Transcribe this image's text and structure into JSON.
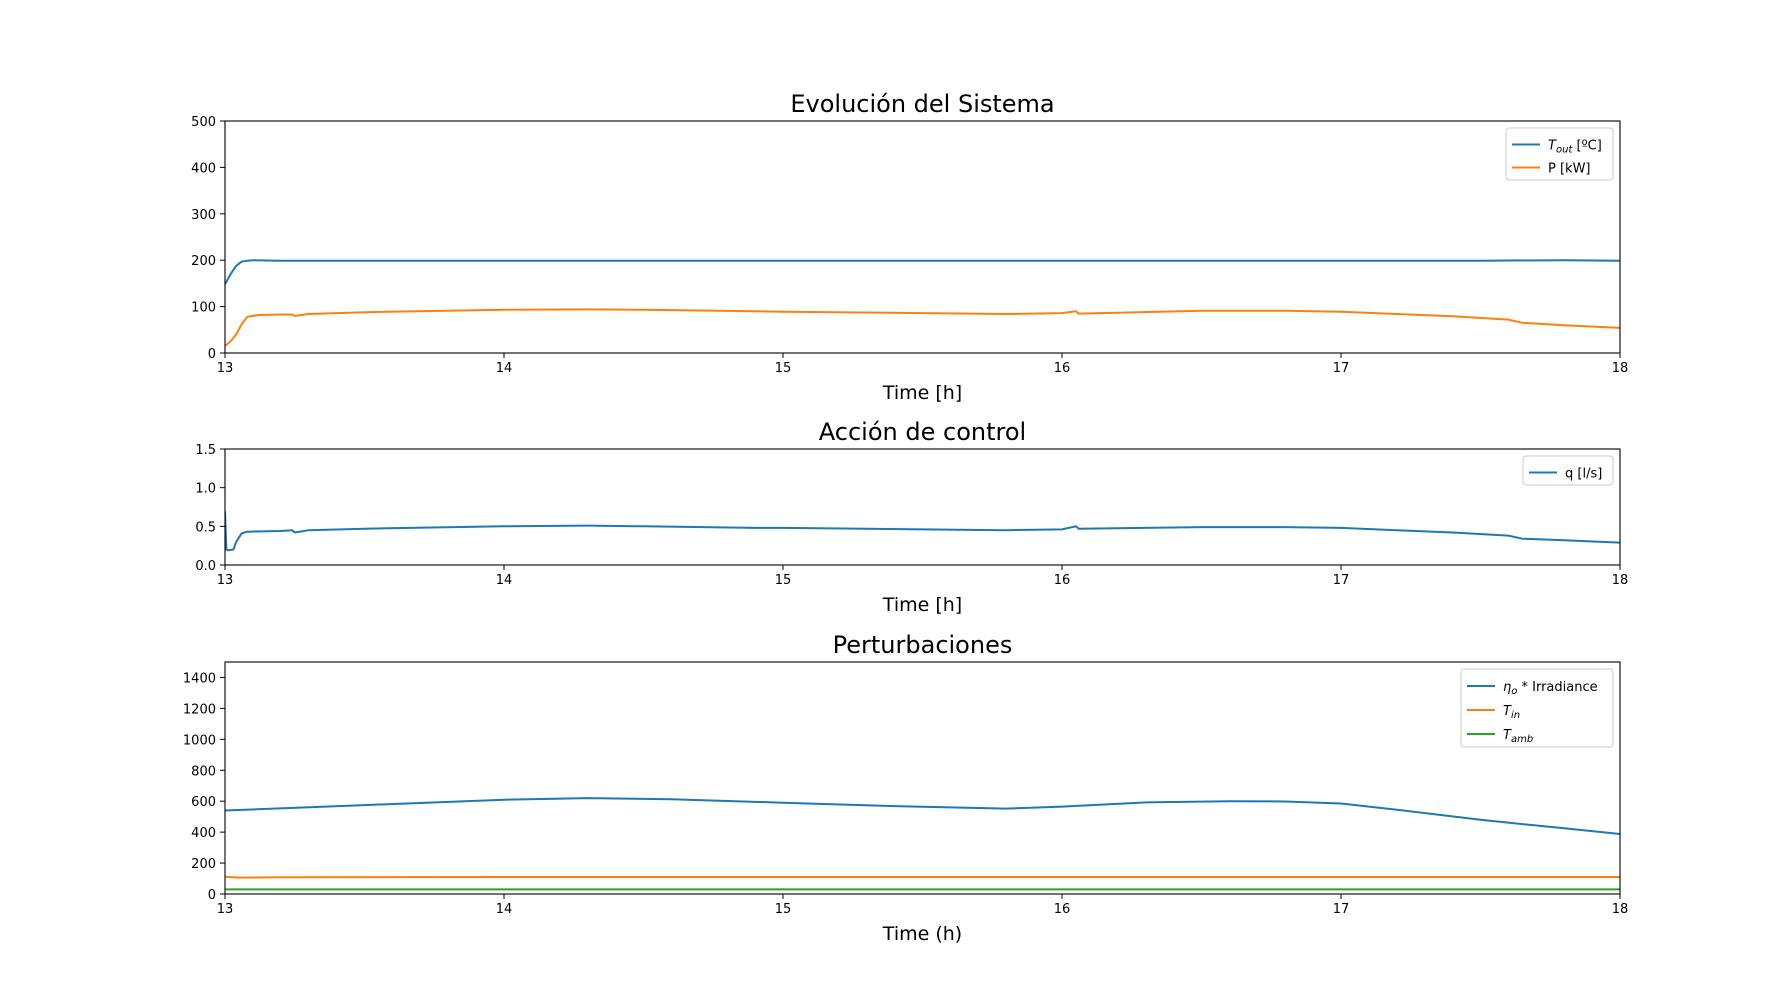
{
  "chart_data": [
    {
      "type": "line",
      "title": "Evolución del Sistema",
      "xlabel": "Time [h]",
      "ylabel": "",
      "xlim": [
        13,
        18
      ],
      "ylim": [
        0,
        500
      ],
      "xticks": [
        "13",
        "14",
        "15",
        "16",
        "17",
        "18"
      ],
      "yticks": [
        "0",
        "100",
        "200",
        "300",
        "400",
        "500"
      ],
      "legend": "top-right",
      "grid": false,
      "series": [
        {
          "name": "T_out [ºC]",
          "label_main": "T",
          "label_sub": "out",
          "label_suffix": " [ºC]",
          "color": "#1f77b4",
          "x": [
            13.0,
            13.02,
            13.04,
            13.06,
            13.08,
            13.1,
            13.2,
            13.5,
            14.0,
            14.5,
            15.0,
            15.5,
            16.0,
            16.5,
            17.0,
            17.5,
            17.8,
            18.0
          ],
          "y": [
            148,
            170,
            188,
            197,
            199,
            200,
            199,
            199,
            199,
            199,
            199,
            199,
            199,
            199,
            199,
            199,
            200,
            199
          ]
        },
        {
          "name": "P [kW]",
          "color": "#ff7f0e",
          "x": [
            13.0,
            13.02,
            13.04,
            13.06,
            13.08,
            13.12,
            13.2,
            13.24,
            13.25,
            13.3,
            13.5,
            14.0,
            14.3,
            14.5,
            14.9,
            15.0,
            15.5,
            15.8,
            16.0,
            16.05,
            16.06,
            16.5,
            16.8,
            17.0,
            17.2,
            17.4,
            17.6,
            17.65,
            17.8,
            18.0
          ],
          "y": [
            15,
            25,
            40,
            62,
            78,
            82,
            83,
            83,
            80,
            84,
            88,
            93,
            94,
            93,
            90,
            89,
            86,
            84,
            86,
            90,
            85,
            91,
            91,
            89,
            84,
            79,
            72,
            65,
            60,
            54
          ]
        }
      ]
    },
    {
      "type": "line",
      "title": "Acción de control",
      "xlabel": "Time [h]",
      "ylabel": "",
      "xlim": [
        13,
        18
      ],
      "ylim": [
        0,
        1.5
      ],
      "xticks": [
        "13",
        "14",
        "15",
        "16",
        "17",
        "18"
      ],
      "yticks": [
        "0.0",
        "0.5",
        "1.0",
        "1.5"
      ],
      "legend": "top-right",
      "grid": false,
      "series": [
        {
          "name": "q [l/s]",
          "color": "#1f77b4",
          "x": [
            13.0,
            13.005,
            13.01,
            13.03,
            13.04,
            13.06,
            13.08,
            13.2,
            13.24,
            13.25,
            13.3,
            13.5,
            14.0,
            14.3,
            14.5,
            14.9,
            15.0,
            15.5,
            15.8,
            16.0,
            16.05,
            16.06,
            16.5,
            16.8,
            17.0,
            17.2,
            17.4,
            17.6,
            17.65,
            17.8,
            18.0
          ],
          "y": [
            0.7,
            0.2,
            0.19,
            0.2,
            0.3,
            0.41,
            0.43,
            0.44,
            0.45,
            0.42,
            0.45,
            0.47,
            0.5,
            0.51,
            0.5,
            0.48,
            0.48,
            0.46,
            0.45,
            0.46,
            0.5,
            0.47,
            0.49,
            0.49,
            0.48,
            0.45,
            0.42,
            0.38,
            0.34,
            0.32,
            0.29
          ]
        }
      ]
    },
    {
      "type": "line",
      "title": "Perturbaciones",
      "xlabel": "Time (h)",
      "ylabel": "",
      "xlim": [
        13,
        18
      ],
      "ylim": [
        0,
        1500
      ],
      "xticks": [
        "13",
        "14",
        "15",
        "16",
        "17",
        "18"
      ],
      "yticks": [
        "0",
        "200",
        "400",
        "600",
        "800",
        "1000",
        "1200",
        "1400"
      ],
      "legend": "top-right",
      "grid": false,
      "series": [
        {
          "name": "η_o * Irradiance",
          "label_main": "η",
          "label_sub": "o",
          "label_suffix": " * Irradiance",
          "color": "#1f77b4",
          "x": [
            13.0,
            13.5,
            14.0,
            14.3,
            14.6,
            15.0,
            15.4,
            15.8,
            16.0,
            16.3,
            16.6,
            16.8,
            17.0,
            17.2,
            17.5,
            17.8,
            18.0
          ],
          "y": [
            540,
            575,
            610,
            620,
            612,
            590,
            568,
            552,
            565,
            592,
            600,
            598,
            585,
            545,
            480,
            425,
            388
          ]
        },
        {
          "name": "T_in",
          "label_main": "T",
          "label_sub": "in",
          "label_suffix": "",
          "color": "#ff7f0e",
          "x": [
            13.0,
            13.05,
            13.2,
            14.0,
            15.0,
            16.0,
            17.0,
            18.0
          ],
          "y": [
            112,
            106,
            108,
            110,
            110,
            110,
            110,
            110
          ]
        },
        {
          "name": "T_amb",
          "label_main": "T",
          "label_sub": "amb",
          "label_suffix": "",
          "color": "#2ca02c",
          "x": [
            13.0,
            14.0,
            15.0,
            16.0,
            17.0,
            18.0
          ],
          "y": [
            30,
            30,
            30,
            30,
            30,
            30
          ]
        }
      ]
    }
  ]
}
